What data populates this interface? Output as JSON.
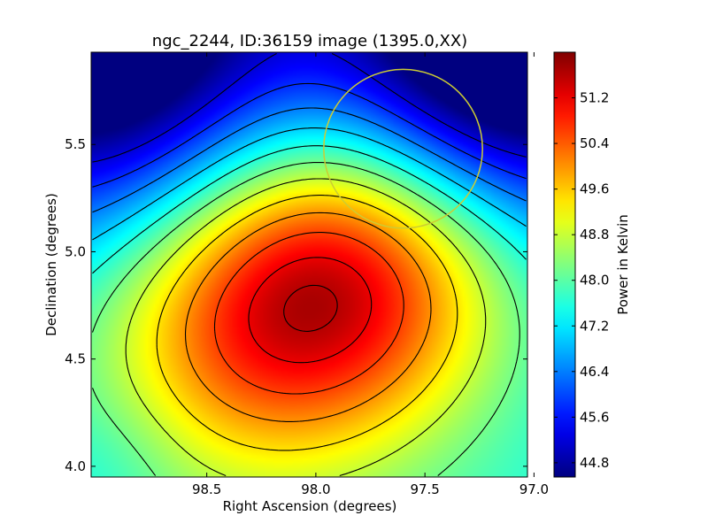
{
  "chart_data": {
    "type": "heatmap",
    "title": "ngc_2244, ID:36159 image (1395.0,XX)",
    "xlabel": "Right Ascension (degrees)",
    "ylabel": "Declination (degrees)",
    "xlim": [
      99.03,
      97.03
    ],
    "ylim": [
      3.95,
      5.93
    ],
    "x_reversed": true,
    "x_ticks": [
      98.5,
      98.0,
      97.5,
      97.0
    ],
    "x_tick_labels": [
      "98.5",
      "98.0",
      "97.5",
      "97.0"
    ],
    "y_ticks": [
      4.0,
      4.5,
      5.0,
      5.5
    ],
    "y_tick_labels": [
      "4.0",
      "4.5",
      "5.0",
      "5.5"
    ],
    "colormap": "jet",
    "colorbar": {
      "label": "Power in Kelvin",
      "range": [
        44.55,
        52.0
      ],
      "ticks": [
        44.8,
        45.6,
        46.4,
        47.2,
        48.0,
        48.8,
        49.6,
        50.4,
        51.2
      ],
      "tick_labels": [
        "44.8",
        "45.6",
        "46.4",
        "47.2",
        "48.0",
        "48.8",
        "49.6",
        "50.4",
        "51.2"
      ]
    },
    "peak": {
      "ra": 98.0,
      "dec": 4.82,
      "value": 51.9
    },
    "field_minima": [
      {
        "ra": 97.15,
        "dec": 5.9,
        "value": 44.6
      },
      {
        "ra": 98.95,
        "dec": 5.92,
        "value": 45.2
      }
    ],
    "beam_circle": {
      "ra": 97.6,
      "dec": 5.48,
      "radius_deg": 0.37,
      "color": "#cccc33"
    },
    "contour_levels": [
      45.2,
      45.8,
      46.4,
      47.0,
      47.6,
      48.2,
      48.8,
      49.4,
      50.0,
      50.6,
      51.2,
      51.6
    ],
    "grid": false
  }
}
